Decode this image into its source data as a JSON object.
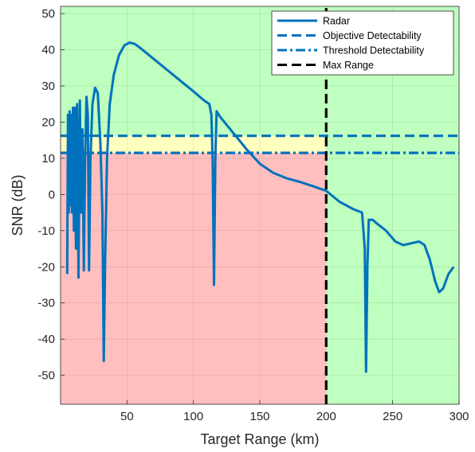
{
  "chart_data": {
    "type": "line",
    "xlabel": "Target Range (km)",
    "ylabel": "SNR (dB)",
    "xlim": [
      0,
      300
    ],
    "ylim": [
      -58,
      52
    ],
    "xticks": [
      50,
      100,
      150,
      200,
      250,
      300
    ],
    "yticks": [
      -50,
      -40,
      -30,
      -20,
      -10,
      0,
      10,
      20,
      30,
      40,
      50
    ],
    "grid": true,
    "legend_position": "top-right",
    "regions": [
      {
        "color": "#ffbfbf",
        "x_range": [
          0,
          200
        ],
        "y_range": [
          -58,
          11.5
        ]
      },
      {
        "color": "#ffffbf",
        "x_range": [
          0,
          200
        ],
        "y_range": [
          11.5,
          16.2
        ]
      },
      {
        "color": "#bfffbf",
        "x_range": [
          0,
          200
        ],
        "y_range": [
          16.2,
          52
        ]
      },
      {
        "color": "#bfffbf",
        "x_range": [
          200,
          300
        ],
        "y_range": [
          -58,
          52
        ]
      }
    ],
    "series": [
      {
        "name": "Radar",
        "style": "solid",
        "color": "#0072bd",
        "points": [
          [
            5,
            -22
          ],
          [
            5.6,
            22
          ],
          [
            6.2,
            -5
          ],
          [
            6.8,
            23
          ],
          [
            7.4,
            -3
          ],
          [
            8,
            22
          ],
          [
            8.6,
            -5
          ],
          [
            9.3,
            24
          ],
          [
            10,
            -10
          ],
          [
            10.8,
            24
          ],
          [
            11.6,
            -15
          ],
          [
            12.5,
            25
          ],
          [
            13.5,
            -23
          ],
          [
            14.5,
            26
          ],
          [
            15.5,
            -5
          ],
          [
            16.5,
            18
          ],
          [
            17.5,
            -21
          ],
          [
            18.5,
            10
          ],
          [
            19.5,
            27
          ],
          [
            20.5,
            22
          ],
          [
            21.4,
            -21
          ],
          [
            22.5,
            10
          ],
          [
            24,
            25
          ],
          [
            26,
            29.5
          ],
          [
            28,
            28
          ],
          [
            30,
            14
          ],
          [
            31.5,
            -5
          ],
          [
            32.5,
            -46
          ],
          [
            33.5,
            -20
          ],
          [
            35,
            10
          ],
          [
            37,
            25
          ],
          [
            40,
            33
          ],
          [
            44,
            38.5
          ],
          [
            48,
            41.2
          ],
          [
            52,
            42
          ],
          [
            56,
            41.6
          ],
          [
            60,
            40.5
          ],
          [
            70,
            37.5
          ],
          [
            80,
            34.5
          ],
          [
            90,
            31.5
          ],
          [
            100,
            28.5
          ],
          [
            108,
            26
          ],
          [
            112,
            25
          ],
          [
            113.5,
            22
          ],
          [
            114.5,
            10
          ],
          [
            115.5,
            -25
          ],
          [
            116.5,
            10
          ],
          [
            117.5,
            23
          ],
          [
            120,
            21.5
          ],
          [
            130,
            17
          ],
          [
            140,
            12.5
          ],
          [
            150,
            8.5
          ],
          [
            160,
            6
          ],
          [
            170,
            4.5
          ],
          [
            180,
            3.5
          ],
          [
            190,
            2.3
          ],
          [
            200,
            1
          ],
          [
            210,
            -2
          ],
          [
            220,
            -4
          ],
          [
            227,
            -5
          ],
          [
            229,
            -15
          ],
          [
            230,
            -49
          ],
          [
            231,
            -20
          ],
          [
            232,
            -7
          ],
          [
            235,
            -7
          ],
          [
            238,
            -8
          ],
          [
            245,
            -10
          ],
          [
            252,
            -13
          ],
          [
            258,
            -14
          ],
          [
            264,
            -13.5
          ],
          [
            270,
            -13
          ],
          [
            274,
            -14
          ],
          [
            278,
            -18
          ],
          [
            282,
            -24
          ],
          [
            285,
            -27
          ],
          [
            288,
            -26
          ],
          [
            292,
            -22
          ],
          [
            296,
            -20
          ]
        ]
      },
      {
        "name": "Objective Detectability",
        "style": "dashed",
        "color": "#0072bd",
        "points": [
          [
            0,
            16.2
          ],
          [
            300,
            16.2
          ]
        ]
      },
      {
        "name": "Threshold Detectability",
        "style": "dash-dot",
        "color": "#0072bd",
        "points": [
          [
            0,
            11.5
          ],
          [
            300,
            11.5
          ]
        ]
      },
      {
        "name": "Max Range",
        "style": "dashed",
        "color": "#000000",
        "points": [
          [
            200,
            -58
          ],
          [
            200,
            52
          ]
        ]
      }
    ]
  }
}
